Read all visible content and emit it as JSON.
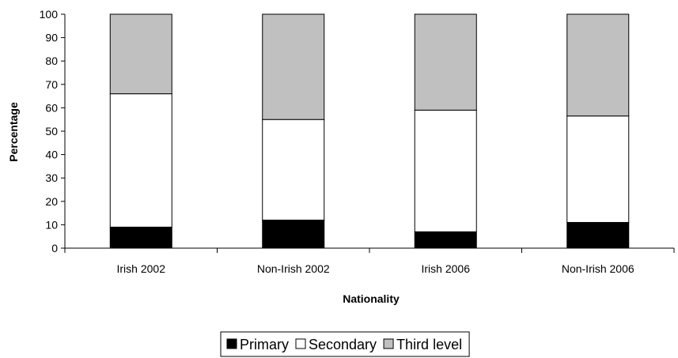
{
  "chart_data": {
    "type": "bar",
    "stacked": true,
    "categories": [
      "Irish 2002",
      "Non-Irish 2002",
      "Irish 2006",
      "Non-Irish 2006"
    ],
    "series": [
      {
        "name": "Primary",
        "values": [
          9,
          12,
          7,
          11
        ],
        "color": "#000000"
      },
      {
        "name": "Secondary",
        "values": [
          57,
          43,
          52,
          45.5
        ],
        "color": "#ffffff"
      },
      {
        "name": "Third level",
        "values": [
          34,
          45,
          41,
          43.5
        ],
        "color": "#c0c0c0"
      }
    ],
    "title": "",
    "xlabel": "Nationality",
    "ylabel": "Percentage",
    "ylim": [
      0,
      100
    ],
    "yticks": [
      0,
      10,
      20,
      30,
      40,
      50,
      60,
      70,
      80,
      90,
      100
    ],
    "grid": false,
    "legend_position": "bottom"
  }
}
